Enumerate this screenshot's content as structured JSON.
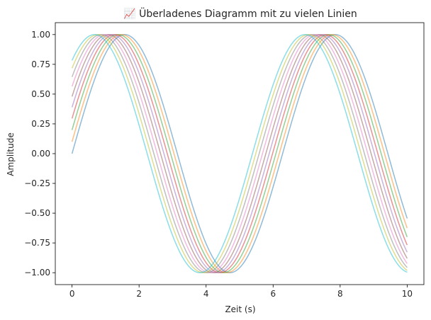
{
  "chart_data": {
    "type": "line",
    "title": "📈 Überladenes Diagramm mit zu vielen Linien",
    "xlabel": "Zeit (s)",
    "ylabel": "Amplitude",
    "xlim": [
      -0.5,
      10.5
    ],
    "ylim": [
      -1.1,
      1.1
    ],
    "xticks": [
      0,
      2,
      4,
      6,
      8,
      10
    ],
    "xtick_labels": [
      "0",
      "2",
      "4",
      "6",
      "8",
      "10"
    ],
    "yticks": [
      1.0,
      0.75,
      0.5,
      0.25,
      0.0,
      -0.25,
      -0.5,
      -0.75,
      -1.0
    ],
    "ytick_labels": [
      "1.00",
      "0.75",
      "0.50",
      "0.25",
      "0.00",
      "−0.25",
      "−0.50",
      "−0.75",
      "−1.00"
    ],
    "grid": false,
    "legend": false,
    "function": "y = sin(x + phase)",
    "x_range": [
      0,
      10
    ],
    "series": [
      {
        "phase": 0.0,
        "color": "#1f77b4"
      },
      {
        "phase": 0.1,
        "color": "#ff7f0e"
      },
      {
        "phase": 0.2,
        "color": "#2ca02c"
      },
      {
        "phase": 0.3,
        "color": "#d62728"
      },
      {
        "phase": 0.4,
        "color": "#9467bd"
      },
      {
        "phase": 0.5,
        "color": "#8c564b"
      },
      {
        "phase": 0.6,
        "color": "#e377c2"
      },
      {
        "phase": 0.7,
        "color": "#7f7f7f"
      },
      {
        "phase": 0.8,
        "color": "#bcbd22"
      },
      {
        "phase": 0.9,
        "color": "#17becf"
      }
    ],
    "line_opacity": 0.5
  }
}
